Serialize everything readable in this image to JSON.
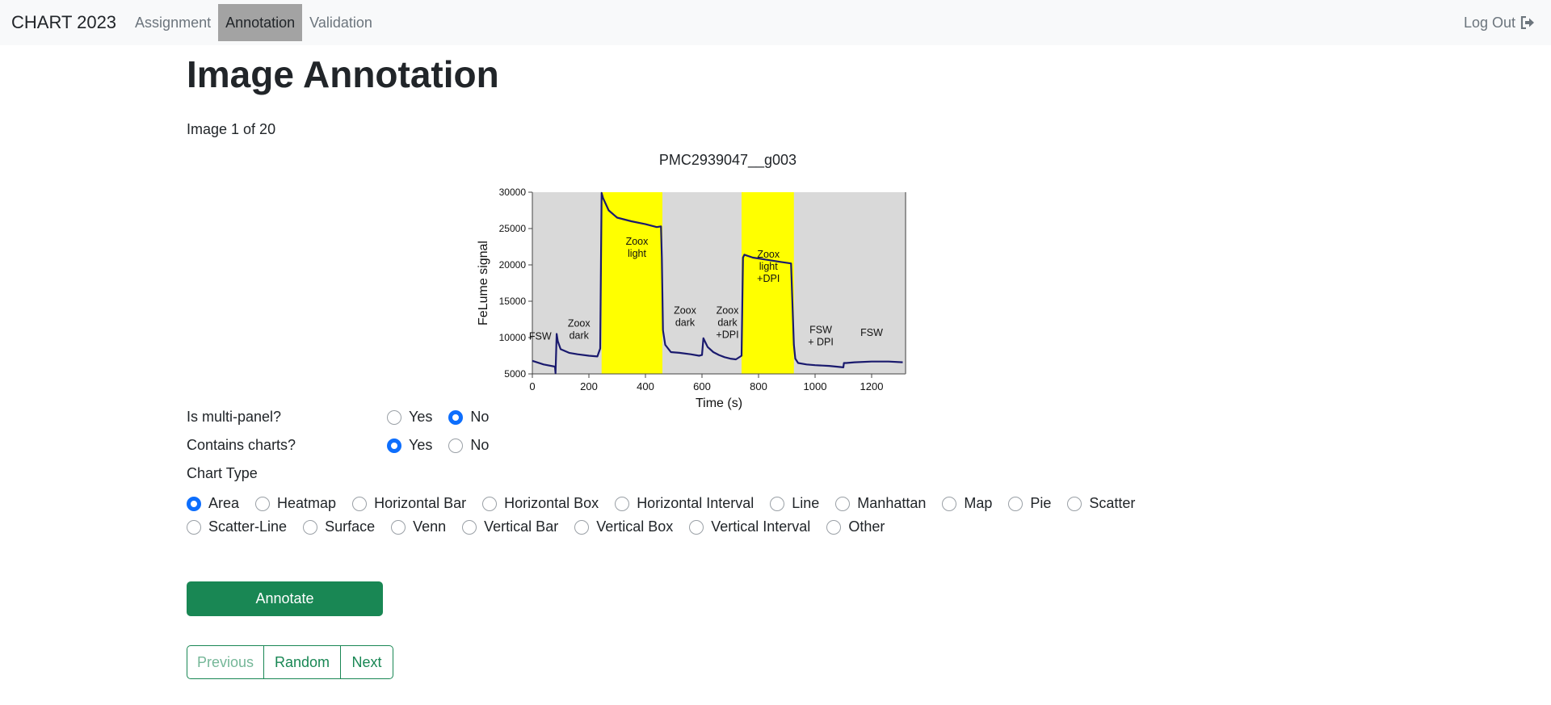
{
  "nav": {
    "brand": "CHART 2023",
    "links": [
      "Assignment",
      "Annotation",
      "Validation"
    ],
    "active": "Annotation",
    "logout": "Log Out"
  },
  "page": {
    "title": "Image Annotation",
    "counter": "Image 1 of 20"
  },
  "figure": {
    "name": "PMC2939047__g003",
    "colors": {
      "bg": "#d9d9d9",
      "highlight": "#ffff00",
      "line": "#1a1a6e"
    }
  },
  "chart_data": {
    "type": "line",
    "xlabel": "Time (s)",
    "ylabel": "FeLume signal",
    "xlim": [
      0,
      1320
    ],
    "ylim": [
      5000,
      30000
    ],
    "xticks": [
      0,
      200,
      400,
      600,
      800,
      1000,
      1200
    ],
    "yticks": [
      5000,
      10000,
      15000,
      20000,
      25000,
      30000
    ],
    "shaded_regions": [
      [
        245,
        460
      ],
      [
        740,
        925
      ]
    ],
    "annotations": [
      {
        "text": [
          "FSW"
        ],
        "x": 28,
        "y": 9700
      },
      {
        "text": [
          "Zoox",
          "dark"
        ],
        "x": 165,
        "y": 11500
      },
      {
        "text": [
          "Zoox",
          "light"
        ],
        "x": 370,
        "y": 22800
      },
      {
        "text": [
          "Zoox",
          "dark"
        ],
        "x": 540,
        "y": 13300
      },
      {
        "text": [
          "Zoox",
          "dark",
          "+DPI"
        ],
        "x": 690,
        "y": 13300
      },
      {
        "text": [
          "Zoox",
          "light",
          "+DPI"
        ],
        "x": 835,
        "y": 21000
      },
      {
        "text": [
          "FSW",
          "+ DPI"
        ],
        "x": 1020,
        "y": 10600
      },
      {
        "text": [
          "FSW"
        ],
        "x": 1200,
        "y": 10200
      }
    ],
    "series": [
      {
        "x": [
          0,
          40,
          80,
          82,
          86,
          90,
          100,
          130,
          160,
          200,
          230,
          240,
          245,
          250,
          270,
          300,
          350,
          400,
          440,
          455,
          458,
          462,
          470,
          490,
          520,
          560,
          590,
          600,
          605,
          620,
          640,
          660,
          680,
          700,
          720,
          740,
          745,
          750,
          780,
          830,
          880,
          915,
          925,
          930,
          940,
          970,
          1000,
          1050,
          1100,
          1102,
          1110,
          1140,
          1200,
          1260,
          1310
        ],
        "y": [
          6800,
          6300,
          6000,
          5100,
          10500,
          9500,
          8400,
          7900,
          7700,
          7500,
          7400,
          8500,
          29900,
          29200,
          27500,
          26500,
          26000,
          25600,
          25200,
          25300,
          21000,
          11000,
          9000,
          8000,
          7900,
          7700,
          7500,
          7600,
          9900,
          8700,
          8000,
          7600,
          7300,
          7100,
          7000,
          7500,
          21000,
          21400,
          21000,
          20700,
          20400,
          20200,
          9000,
          7100,
          6500,
          6300,
          6200,
          6100,
          5900,
          6500,
          6500,
          6600,
          6700,
          6700,
          6600
        ]
      }
    ]
  },
  "form": {
    "multipanel": {
      "label": "Is multi-panel?",
      "options": [
        "Yes",
        "No"
      ],
      "selected": "No"
    },
    "contains": {
      "label": "Contains charts?",
      "options": [
        "Yes",
        "No"
      ],
      "selected": "Yes"
    },
    "chart_type": {
      "label": "Chart Type",
      "row1": [
        "Area",
        "Heatmap",
        "Horizontal Bar",
        "Horizontal Box",
        "Horizontal Interval",
        "Line",
        "Manhattan",
        "Map",
        "Pie",
        "Scatter"
      ],
      "row2": [
        "Scatter-Line",
        "Surface",
        "Venn",
        "Vertical Bar",
        "Vertical Box",
        "Vertical Interval",
        "Other"
      ],
      "selected": "Area"
    }
  },
  "buttons": {
    "annotate": "Annotate",
    "previous": "Previous",
    "random": "Random",
    "next": "Next"
  }
}
